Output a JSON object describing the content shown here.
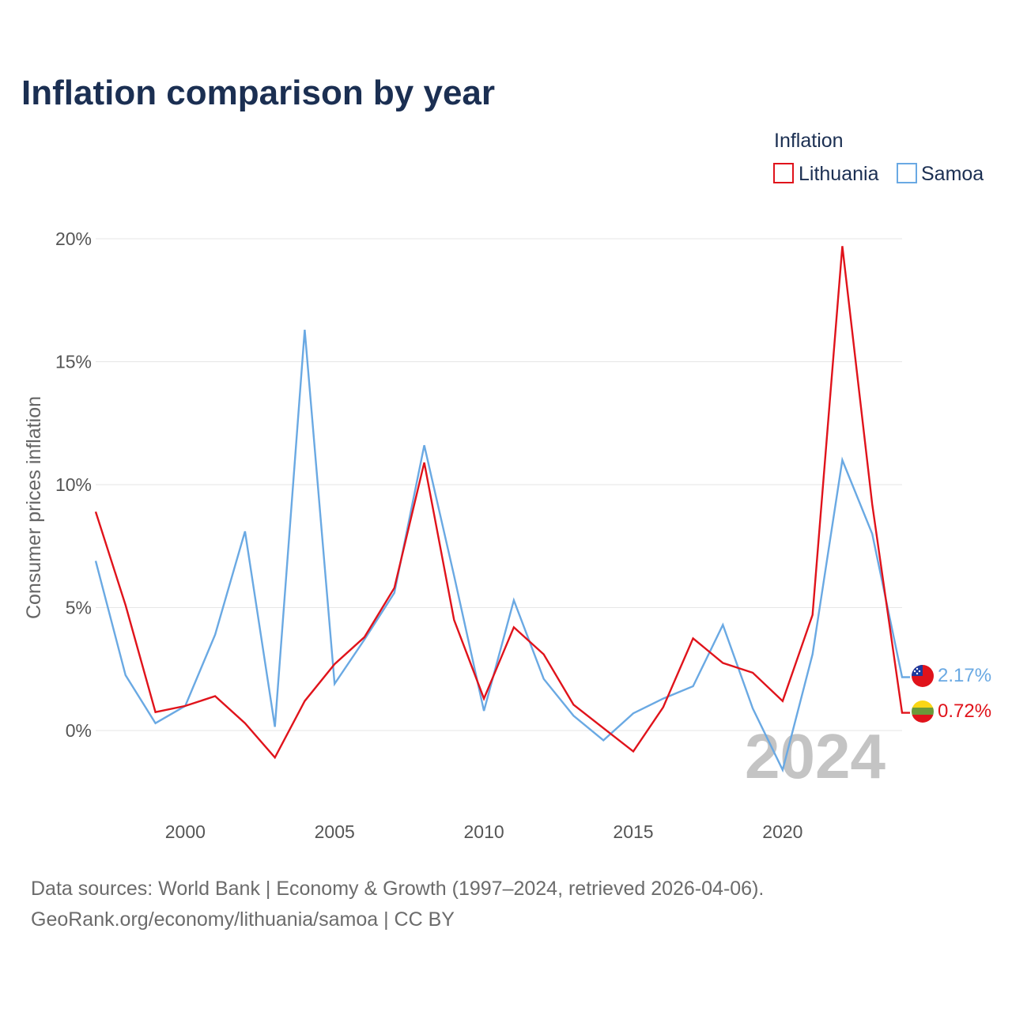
{
  "title": "Inflation comparison by year",
  "legend": {
    "title": "Inflation",
    "items": [
      {
        "label": "Lithuania",
        "color": "#e0131b"
      },
      {
        "label": "Samoa",
        "color": "#6aa9e3"
      }
    ]
  },
  "watermark_year": "2024",
  "chart_data": {
    "type": "line",
    "title": "Inflation comparison by year",
    "xlabel": "",
    "ylabel": "Consumer prices inflation",
    "xlim": [
      1997,
      2024
    ],
    "ylim": [
      -3,
      20
    ],
    "x_ticks": [
      2000,
      2005,
      2010,
      2015,
      2020
    ],
    "x_tick_labels": [
      "2000",
      "2005",
      "2010",
      "2015",
      "2020"
    ],
    "y_ticks": [
      0,
      5,
      10,
      15,
      20
    ],
    "y_tick_labels": [
      "0%",
      "5%",
      "10%",
      "15%",
      "20%"
    ],
    "x": [
      1997,
      1998,
      1999,
      2000,
      2001,
      2002,
      2003,
      2004,
      2005,
      2006,
      2007,
      2008,
      2009,
      2010,
      2011,
      2012,
      2013,
      2014,
      2015,
      2016,
      2017,
      2018,
      2019,
      2020,
      2021,
      2022,
      2023,
      2024
    ],
    "series": [
      {
        "name": "Lithuania",
        "color": "#e0131b",
        "values": [
          8.9,
          5.1,
          0.75,
          1.0,
          1.4,
          0.3,
          -1.1,
          1.2,
          2.7,
          3.8,
          5.8,
          10.9,
          4.5,
          1.3,
          4.2,
          3.1,
          1.05,
          0.1,
          -0.85,
          0.95,
          3.75,
          2.75,
          2.35,
          1.2,
          4.7,
          19.7,
          9.2,
          0.72
        ],
        "end_label": "0.72%"
      },
      {
        "name": "Samoa",
        "color": "#6aa9e3",
        "values": [
          6.9,
          2.25,
          0.3,
          1.0,
          3.9,
          8.1,
          0.15,
          16.3,
          1.9,
          3.7,
          5.6,
          11.6,
          6.3,
          0.8,
          5.3,
          2.1,
          0.6,
          -0.4,
          0.7,
          1.3,
          1.8,
          4.3,
          0.9,
          -1.6,
          3.1,
          11.0,
          8.0,
          2.17
        ],
        "end_label": "2.17%"
      }
    ],
    "legend_position": "top-right"
  },
  "source": {
    "line1": "Data sources: World Bank | Economy & Growth (1997–2024, retrieved 2026-04-06).",
    "line2": "GeoRank.org/economy/lithuania/samoa | CC BY"
  },
  "icons": {
    "samoa": "samoa-flag-icon",
    "lithuania": "lithuania-flag-icon"
  }
}
